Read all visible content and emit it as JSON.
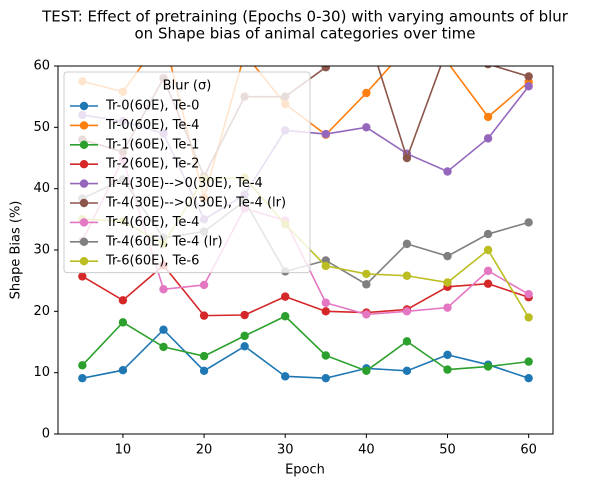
{
  "chart_data": {
    "type": "line",
    "title": [
      "TEST: Effect of pretraining (Epochs 0-30) with varying amounts of blur",
      "on Shape bias of animal categories over time"
    ],
    "xlabel": "Epoch",
    "ylabel": "Shape Bias (%)",
    "xlim": [
      2,
      63
    ],
    "ylim": [
      0,
      60
    ],
    "xticks": [
      10,
      20,
      30,
      40,
      50,
      60
    ],
    "yticks": [
      0,
      10,
      20,
      30,
      40,
      50,
      60
    ],
    "grid": false,
    "legend": {
      "title": "Blur (σ)",
      "placement": "upper-left"
    },
    "x": [
      5,
      10,
      15,
      20,
      25,
      30,
      35,
      40,
      45,
      50,
      55,
      60
    ],
    "series": [
      {
        "name": "Tr-0(60E), Te-0",
        "color": "#1f77b4",
        "values": [
          9.1,
          10.4,
          17.0,
          10.3,
          14.3,
          9.4,
          9.1,
          10.7,
          10.3,
          12.9,
          11.3,
          9.1
        ]
      },
      {
        "name": "Tr-0(60E), Te-4",
        "color": "#ff7f0e",
        "values": [
          57.5,
          55.8,
          65.0,
          38.5,
          62.0,
          53.8,
          48.8,
          55.6,
          63.0,
          60.6,
          51.7,
          57.4
        ]
      },
      {
        "name": "Tr-1(60E), Te-1",
        "color": "#2ca02c",
        "values": [
          11.2,
          18.2,
          14.2,
          12.7,
          16.0,
          19.2,
          12.8,
          10.3,
          15.1,
          10.5,
          11.0,
          11.8
        ]
      },
      {
        "name": "Tr-2(60E), Te-2",
        "color": "#d62728",
        "values": [
          25.7,
          21.8,
          27.5,
          19.3,
          19.4,
          22.4,
          20.0,
          19.8,
          20.3,
          24.0,
          24.5,
          22.3
        ]
      },
      {
        "name": "Tr-4(30E)-->0(30E), Te-4",
        "color": "#9467bd",
        "values": [
          52.0,
          51.0,
          49.0,
          35.0,
          39.0,
          49.5,
          48.9,
          50.0,
          45.7,
          42.8,
          48.2,
          56.7
        ]
      },
      {
        "name": "Tr-4(30E)-->0(30E), Te-4 (lr)",
        "color": "#8c564b",
        "values": [
          48.0,
          46.0,
          58.0,
          42.0,
          55.0,
          55.0,
          59.8,
          66.0,
          45.0,
          63.0,
          60.3,
          58.3
        ]
      },
      {
        "name": "Tr-4(60E), Te-4",
        "color": "#e377c2",
        "values": [
          31.5,
          44.8,
          23.6,
          24.3,
          36.8,
          34.8,
          21.4,
          19.5,
          20.0,
          20.6,
          26.6,
          22.8
        ]
      },
      {
        "name": "Tr-4(60E), Te-4 (lr)",
        "color": "#7f7f7f",
        "values": [
          38.4,
          41.5,
          32.0,
          33.0,
          38.0,
          26.5,
          28.3,
          24.4,
          31.0,
          29.0,
          32.6,
          34.5
        ]
      },
      {
        "name": "Tr-6(60E), Te-6",
        "color": "#bcbd22",
        "values": [
          35.0,
          34.7,
          31.0,
          41.6,
          41.8,
          34.2,
          27.4,
          26.1,
          25.8,
          24.7,
          30.0,
          19.0
        ]
      }
    ]
  }
}
